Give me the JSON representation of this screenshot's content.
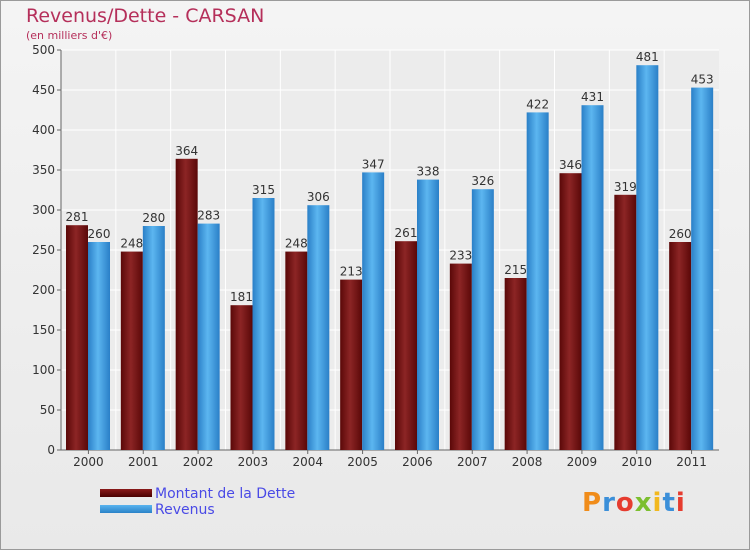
{
  "header": {
    "title": "Revenus/Dette - CARSAN",
    "subtitle": "(en milliers d'€)"
  },
  "chart_data": {
    "type": "bar",
    "categories": [
      "2000",
      "2001",
      "2002",
      "2003",
      "2004",
      "2005",
      "2006",
      "2007",
      "2008",
      "2009",
      "2010",
      "2011"
    ],
    "series": [
      {
        "name": "Montant de la Dette",
        "color": "#6e1010",
        "values": [
          281,
          248,
          364,
          181,
          248,
          213,
          261,
          233,
          215,
          346,
          319,
          260
        ]
      },
      {
        "name": "Revenus",
        "color": "#3a9be0",
        "values": [
          260,
          280,
          283,
          315,
          306,
          347,
          338,
          326,
          422,
          431,
          481,
          453
        ]
      }
    ],
    "ylim": [
      0,
      500
    ],
    "yticks": [
      0,
      50,
      100,
      150,
      200,
      250,
      300,
      350,
      400,
      450,
      500
    ],
    "grid": true,
    "legend_position": "bottom-left",
    "data_labels": true
  },
  "legend": {
    "items": [
      {
        "label": "Montant de la Dette",
        "color": "#6e1010"
      },
      {
        "label": "Revenus",
        "color": "#3a9be0"
      }
    ]
  },
  "logo": {
    "text": "Proxiti",
    "letter_colors": [
      "#f08c1a",
      "#3b8fd9",
      "#e63c2f",
      "#7cbf2f",
      "#f2b81f",
      "#3b8fd9",
      "#e63c2f"
    ]
  }
}
